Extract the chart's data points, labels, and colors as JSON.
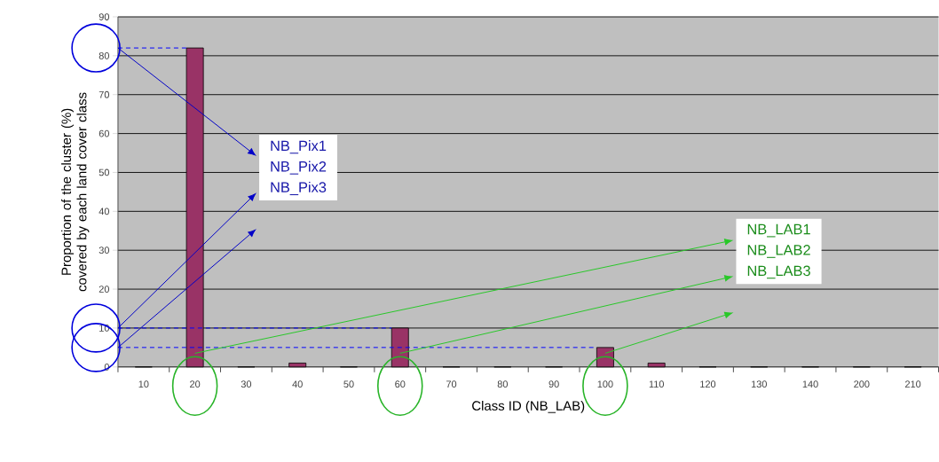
{
  "chart_data": {
    "type": "bar",
    "xlabel": "Class ID (NB_LAB)",
    "ylabel": "Proportion of the cluster (%) covered by each land cover class",
    "categories": [
      "10",
      "20",
      "30",
      "40",
      "50",
      "60",
      "70",
      "80",
      "90",
      "100",
      "110",
      "120",
      "130",
      "140",
      "200",
      "210"
    ],
    "values": [
      0,
      82,
      0,
      1,
      0,
      10,
      0,
      0,
      0,
      5,
      1,
      0,
      0,
      0,
      0,
      0
    ],
    "color": "#993366",
    "ylim": [
      0,
      90
    ],
    "yticks": [
      0,
      10,
      20,
      30,
      40,
      50,
      60,
      70,
      80,
      90
    ],
    "grid": "y",
    "ref_lines": [
      {
        "axis": "y",
        "value": 82,
        "color": "#0000ff",
        "line_style": "dashed"
      },
      {
        "axis": "y",
        "value": 10,
        "color": "#0000ff",
        "line_style": "dashed"
      },
      {
        "axis": "y",
        "value": 5,
        "color": "#0000ff",
        "line_style": "dashed"
      }
    ],
    "annotations": [
      "NB_Pix1",
      "NB_Pix2",
      "NB_Pix3",
      "NB_LAB1",
      "NB_LAB2",
      "NB_LAB3"
    ]
  }
}
